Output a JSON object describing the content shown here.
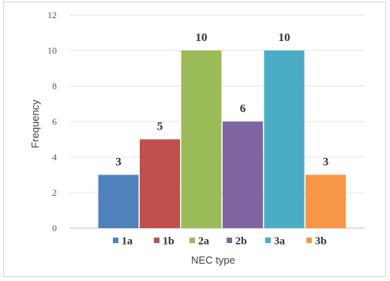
{
  "chart_data": {
    "type": "bar",
    "title": "",
    "xlabel": "NEC type",
    "ylabel": "Frequency",
    "categories": [
      "1a",
      "1b",
      "2a",
      "2b",
      "3a",
      "3b"
    ],
    "values": [
      3,
      5,
      10,
      6,
      10,
      3
    ],
    "data_labels": [
      "3",
      "5",
      "10",
      "6",
      "10",
      "3"
    ],
    "colors": [
      "#4f81bd",
      "#c0504d",
      "#9bbb59",
      "#8064a2",
      "#4bacc6",
      "#f79646"
    ],
    "ylim": [
      0,
      12
    ],
    "yticks": [
      0,
      2,
      4,
      6,
      8,
      10,
      12
    ],
    "ytick_labels": [
      "0",
      "2",
      "4",
      "6",
      "8",
      "10",
      "12"
    ],
    "grid": true,
    "legend": {
      "placement": "bottom",
      "entries": [
        "1a",
        "1b",
        "2a",
        "2b",
        "3a",
        "3b"
      ]
    }
  }
}
